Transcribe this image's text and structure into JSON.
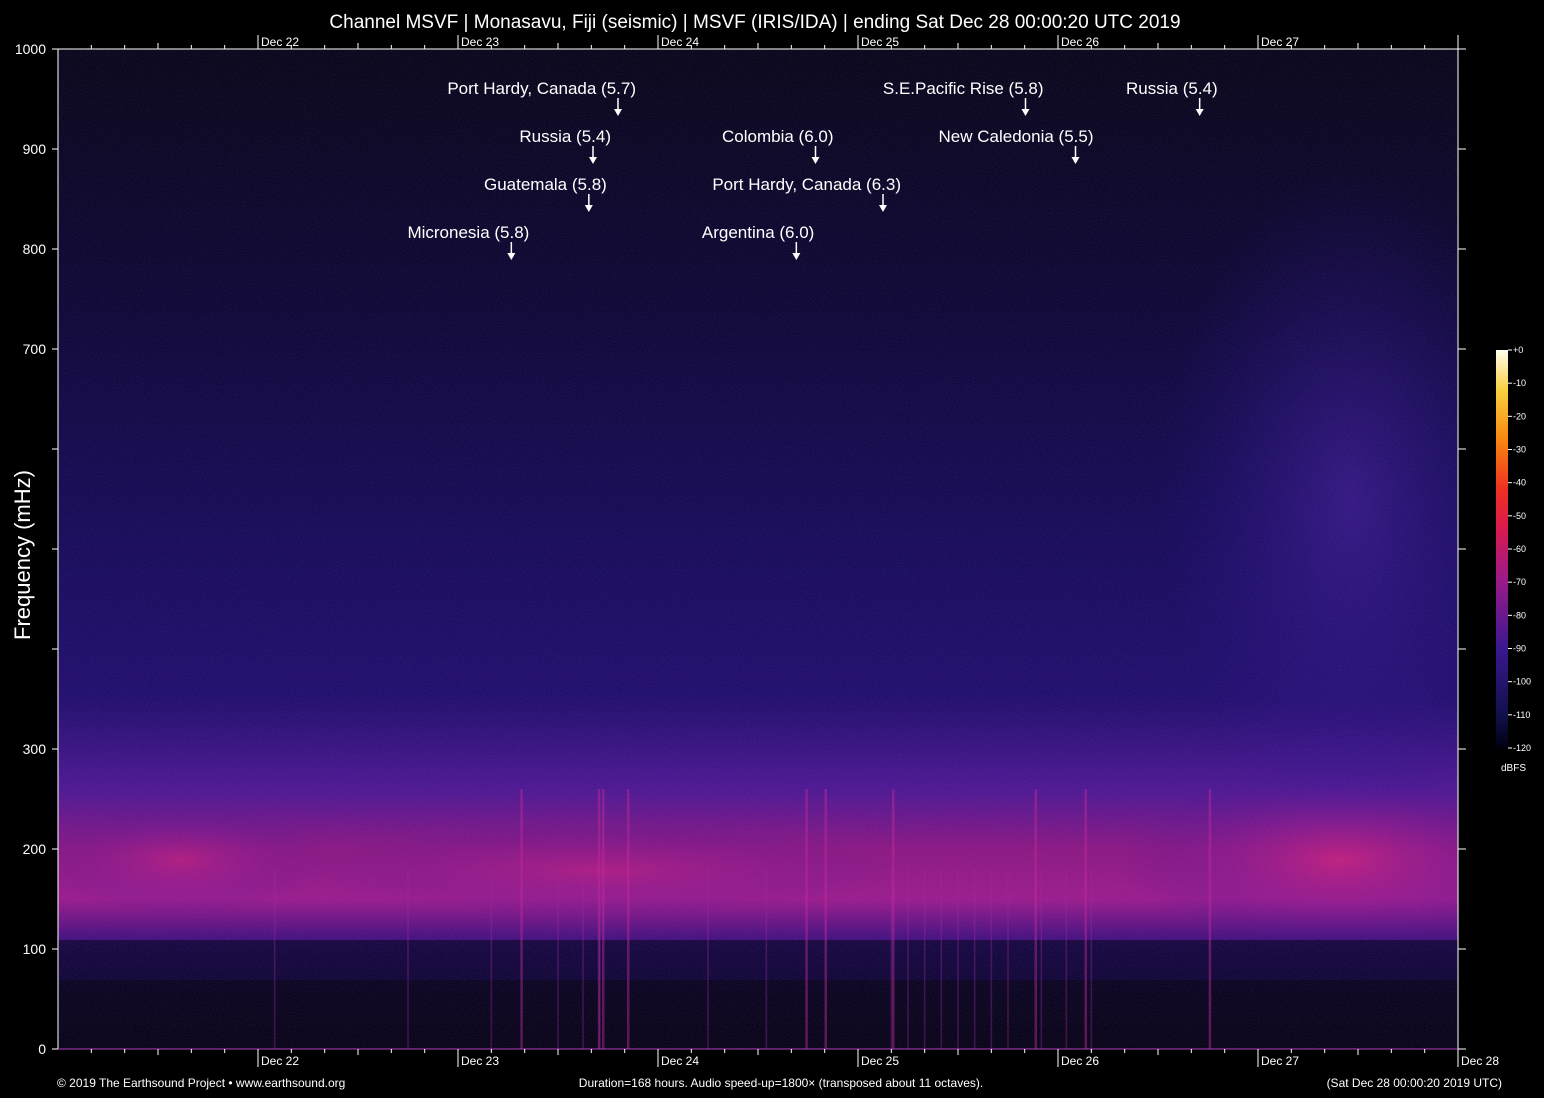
{
  "chart_data": {
    "type": "heatmap",
    "title": "Channel MSVF | Monasavu, Fiji (seismic) | MSVF (IRIS/IDA) | ending Sat Dec 28 00:00:20 UTC 2019",
    "ylabel": "Frequency (mHz)",
    "xlabel": "",
    "ylim": [
      0,
      1000
    ],
    "y_ticks": [
      {
        "value": 0,
        "label": "0"
      },
      {
        "value": 100,
        "label": "100"
      },
      {
        "value": 200,
        "label": "200"
      },
      {
        "value": 300,
        "label": "300"
      },
      {
        "value": 400,
        "label": ""
      },
      {
        "value": 500,
        "label": ""
      },
      {
        "value": 600,
        "label": ""
      },
      {
        "value": 700,
        "label": "700"
      },
      {
        "value": 800,
        "label": "800"
      },
      {
        "value": 900,
        "label": "900"
      },
      {
        "value": 1000,
        "label": "1000"
      }
    ],
    "xlim_hours": [
      0,
      168
    ],
    "x_ticks": [
      {
        "hour": 24,
        "label": "Dec 22"
      },
      {
        "hour": 48,
        "label": "Dec 23"
      },
      {
        "hour": 72,
        "label": "Dec 24"
      },
      {
        "hour": 96,
        "label": "Dec 25"
      },
      {
        "hour": 120,
        "label": "Dec 26"
      },
      {
        "hour": 144,
        "label": "Dec 27"
      },
      {
        "hour": 168,
        "label": "Dec 28"
      }
    ],
    "events": [
      {
        "label": "Port Hardy, Canada (5.7)",
        "hour": 67.2,
        "row": 0
      },
      {
        "label": "Russia (5.4)",
        "hour": 64.2,
        "row": 1
      },
      {
        "label": "Guatemala (5.8)",
        "hour": 63.7,
        "row": 2
      },
      {
        "label": "Micronesia (5.8)",
        "hour": 54.4,
        "row": 3
      },
      {
        "label": "Colombia (6.0)",
        "hour": 90.9,
        "row": 1
      },
      {
        "label": "Port Hardy, Canada (6.3)",
        "hour": 99.0,
        "row": 2
      },
      {
        "label": "Argentina (6.0)",
        "hour": 88.6,
        "row": 3
      },
      {
        "label": "S.E.Pacific Rise (5.8)",
        "hour": 116.1,
        "row": 0
      },
      {
        "label": "New Caledonia (5.5)",
        "hour": 122.1,
        "row": 1
      },
      {
        "label": "Russia (5.4)",
        "hour": 137.0,
        "row": 0
      }
    ],
    "colorbar": {
      "unit": "dBFS",
      "range": [
        -120,
        0
      ],
      "ticks": [
        "+0",
        "-10",
        "-20",
        "-30",
        "-40",
        "-50",
        "-60",
        "-70",
        "-80",
        "-90",
        "-100",
        "-110",
        "-120"
      ]
    },
    "grid": false
  },
  "footer": {
    "left": "© 2019 The Earthsound Project • www.earthsound.org",
    "center": "Duration=168 hours. Audio speed-up=1800× (transposed about 11 octaves).",
    "right": "(Sat Dec 28 00:00:20 2019 UTC)"
  }
}
